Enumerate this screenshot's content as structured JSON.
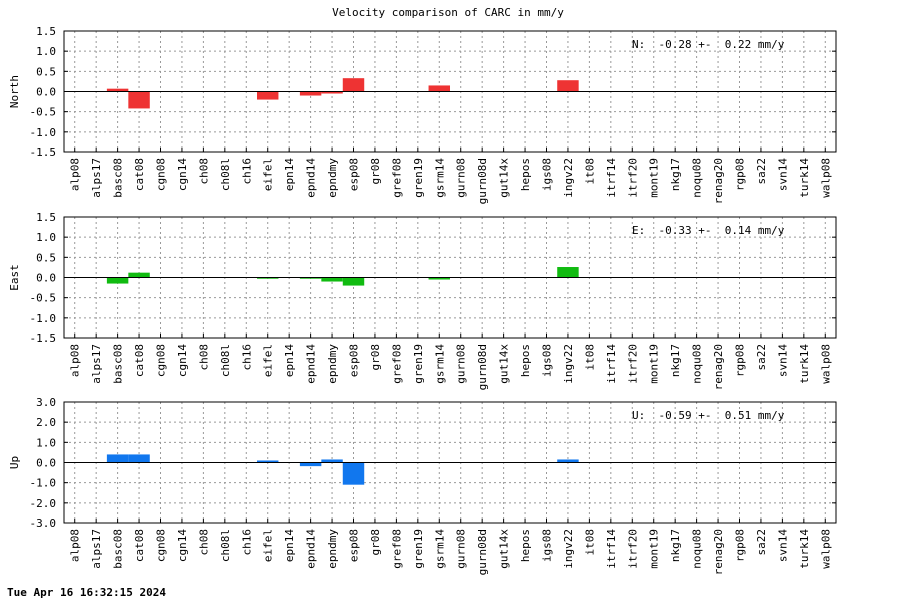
{
  "title": "Velocity comparison of CARC in mm/y",
  "timestamp": "Tue Apr 16 16:32:15 2024",
  "chart_data": [
    {
      "type": "bar",
      "ylabel": "North",
      "color": "#ee3333",
      "ylim": [
        -1.5,
        1.5
      ],
      "yticks": [
        "1.5",
        "1.0",
        "0.5",
        "0.0",
        "-0.5",
        "-1.0",
        "-1.5"
      ],
      "annotation": "N:  -0.28 +-  0.22 mm/y",
      "grid": true,
      "categories": [
        "alp08",
        "alps17",
        "basc08",
        "cat08",
        "cgn08",
        "cgn14",
        "ch08",
        "ch08l",
        "ch16",
        "eifel",
        "epn14",
        "epnd14",
        "epndmy",
        "esp08",
        "gr08",
        "gref08",
        "gren19",
        "gsrm14",
        "gurn08",
        "gurn08d",
        "gut14x",
        "hepos",
        "igs08",
        "ingv22",
        "it08",
        "itrf14",
        "itrf20",
        "mont19",
        "nkg17",
        "noqu08",
        "renag20",
        "rgp08",
        "sa22",
        "svn14",
        "turk14",
        "walp08"
      ],
      "values": [
        0,
        0,
        0.07,
        -0.42,
        0,
        0,
        0,
        0,
        0,
        -0.2,
        0,
        -0.1,
        -0.05,
        0.33,
        0,
        0,
        0,
        0.15,
        0,
        0,
        0,
        0,
        0,
        0.28,
        0,
        0,
        0,
        0,
        0,
        0,
        0,
        0,
        0,
        0,
        0,
        0
      ]
    },
    {
      "type": "bar",
      "ylabel": "East",
      "color": "#11bb11",
      "ylim": [
        -1.5,
        1.5
      ],
      "yticks": [
        "1.5",
        "1.0",
        "0.5",
        "0.0",
        "-0.5",
        "-1.0",
        "-1.5"
      ],
      "annotation": "E:  -0.33 +-  0.14 mm/y",
      "grid": true,
      "categories": [
        "alp08",
        "alps17",
        "basc08",
        "cat08",
        "cgn08",
        "cgn14",
        "ch08",
        "ch08l",
        "ch16",
        "eifel",
        "epn14",
        "epnd14",
        "epndmy",
        "esp08",
        "gr08",
        "gref08",
        "gren19",
        "gsrm14",
        "gurn08",
        "gurn08d",
        "gut14x",
        "hepos",
        "igs08",
        "ingv22",
        "it08",
        "itrf14",
        "itrf20",
        "mont19",
        "nkg17",
        "noqu08",
        "renag20",
        "rgp08",
        "sa22",
        "svn14",
        "turk14",
        "walp08"
      ],
      "values": [
        0,
        0,
        -0.15,
        0.12,
        0,
        0,
        0,
        0,
        0,
        -0.03,
        0,
        -0.03,
        -0.1,
        -0.2,
        0,
        0,
        0,
        -0.05,
        0,
        0,
        0,
        0,
        0,
        0.26,
        0,
        0,
        0,
        0,
        0,
        0,
        0,
        0,
        0,
        0,
        0,
        0
      ]
    },
    {
      "type": "bar",
      "ylabel": "Up",
      "color": "#1177ee",
      "ylim": [
        -3.0,
        3.0
      ],
      "yticks": [
        "3.0",
        "2.0",
        "1.0",
        "0.0",
        "-1.0",
        "-2.0",
        "-3.0"
      ],
      "annotation": "U:  -0.59 +-  0.51 mm/y",
      "grid": true,
      "categories": [
        "alp08",
        "alps17",
        "basc08",
        "cat08",
        "cgn08",
        "cgn14",
        "ch08",
        "ch08l",
        "ch16",
        "eifel",
        "epn14",
        "epnd14",
        "epndmy",
        "esp08",
        "gr08",
        "gref08",
        "gren19",
        "gsrm14",
        "gurn08",
        "gurn08d",
        "gut14x",
        "hepos",
        "igs08",
        "ingv22",
        "it08",
        "itrf14",
        "itrf20",
        "mont19",
        "nkg17",
        "noqu08",
        "renag20",
        "rgp08",
        "sa22",
        "svn14",
        "turk14",
        "walp08"
      ],
      "values": [
        0,
        0,
        0.4,
        0.4,
        0,
        0,
        0,
        0,
        0,
        0.1,
        0,
        -0.18,
        0.15,
        -1.1,
        0,
        0,
        0,
        0,
        0,
        0,
        0,
        0,
        0,
        0.15,
        0,
        0,
        0,
        0,
        0,
        0,
        0,
        0,
        0,
        0,
        0,
        0
      ]
    }
  ]
}
